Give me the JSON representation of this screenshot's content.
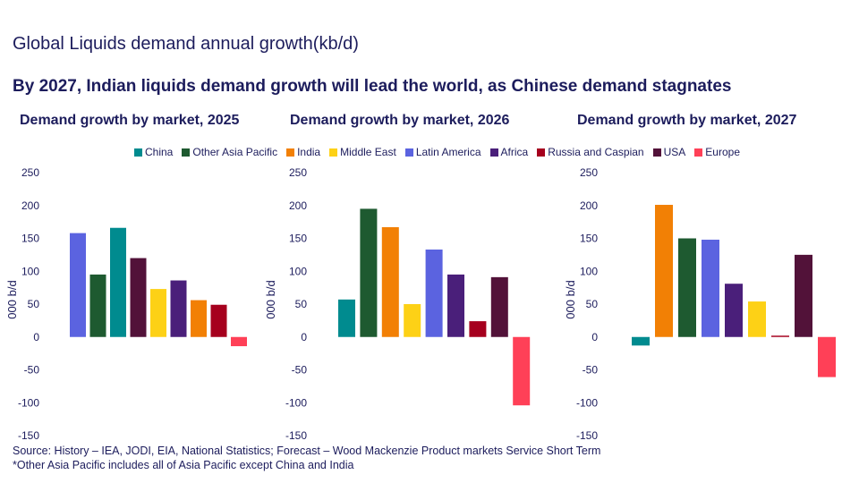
{
  "title": "Global Liquids demand annual growth(kb/d)",
  "subtitle": "By 2027, Indian liquids demand growth will lead the world, as Chinese demand stagnates",
  "footnotes": [
    "Source: History – IEA, JODI, EIA, National Statistics; Forecast – Wood Mackenzie Product markets Service Short Term",
    "*Other Asia Pacific includes all of Asia Pacific except China and India"
  ],
  "legend": [
    {
      "name": "China",
      "color": "#008B8F"
    },
    {
      "name": "Other Asia Pacific",
      "color": "#1E5A30"
    },
    {
      "name": "India",
      "color": "#F28005"
    },
    {
      "name": "Middle East",
      "color": "#FDD116"
    },
    {
      "name": "Latin America",
      "color": "#5B63E0"
    },
    {
      "name": "Africa",
      "color": "#4A1F7A"
    },
    {
      "name": "Russia and Caspian",
      "color": "#A6001E"
    },
    {
      "name": "USA",
      "color": "#521239"
    },
    {
      "name": "Europe",
      "color": "#FF4057"
    }
  ],
  "chart_data": [
    {
      "type": "bar",
      "title": "Demand growth by market, 2025",
      "ylabel": "000 b/d",
      "ylim": [
        -150,
        250
      ],
      "yticks": [
        250,
        200,
        150,
        100,
        50,
        0,
        -50,
        -100,
        -150
      ],
      "categories": [
        "Latin America",
        "Other Asia Pacific",
        "China",
        "USA",
        "Middle East",
        "Africa",
        "India",
        "Russia and Caspian",
        "Europe"
      ],
      "values": [
        158,
        95,
        166,
        120,
        73,
        86,
        56,
        49,
        -14
      ]
    },
    {
      "type": "bar",
      "title": "Demand growth by market, 2026",
      "ylabel": "000 b/d",
      "ylim": [
        -150,
        250
      ],
      "yticks": [
        250,
        200,
        150,
        100,
        50,
        0,
        -50,
        -100,
        -150
      ],
      "categories": [
        "China",
        "Other Asia Pacific",
        "India",
        "Middle East",
        "Latin America",
        "Africa",
        "Russia and Caspian",
        "USA",
        "Europe"
      ],
      "values": [
        57,
        195,
        167,
        50,
        133,
        95,
        24,
        91,
        -104
      ]
    },
    {
      "type": "bar",
      "title": "Demand growth by market, 2027",
      "ylabel": "000 b/d",
      "ylim": [
        -150,
        250
      ],
      "yticks": [
        250,
        200,
        150,
        100,
        50,
        0,
        -50,
        -100,
        -150
      ],
      "categories": [
        "China",
        "India",
        "Other Asia Pacific",
        "Latin America",
        "Africa",
        "Middle East",
        "Russia and Caspian",
        "USA",
        "Europe"
      ],
      "values": [
        -13,
        201,
        150,
        148,
        81,
        54,
        2,
        125,
        -61
      ]
    }
  ]
}
